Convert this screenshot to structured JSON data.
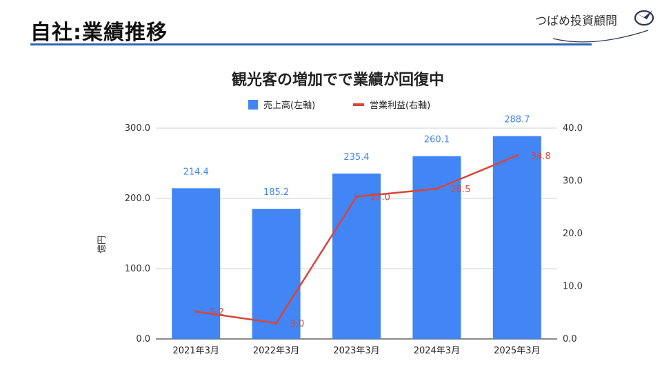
{
  "header": {
    "title": "自社:業績推移",
    "logo_text": "つばめ投資顧問",
    "accent_color": "#2f64b4"
  },
  "chart_data": {
    "type": "bar",
    "title": "観光客の増加でで業績が回復中",
    "categories": [
      "2021年3月",
      "2022年3月",
      "2023年3月",
      "2024年3月",
      "2025年3月"
    ],
    "series": [
      {
        "name": "売上高(左軸)",
        "type": "bar",
        "axis": "left",
        "color": "#4285f4",
        "values": [
          214.4,
          185.2,
          235.4,
          260.1,
          288.7
        ],
        "labels": [
          "214.4",
          "185.2",
          "235.4",
          "260.1",
          "288.7"
        ]
      },
      {
        "name": "営業利益(右軸)",
        "type": "line",
        "axis": "right",
        "color": "#db4437",
        "values": [
          5.2,
          3.0,
          27.0,
          28.5,
          34.8
        ],
        "labels": [
          "5.2",
          "3.0",
          "27.0",
          "28.5",
          "34.8"
        ]
      }
    ],
    "ylabel": "億円",
    "ylim": [
      0,
      300
    ],
    "y2lim": [
      0,
      40
    ],
    "yticks": [
      "0.0",
      "100.0",
      "200.0",
      "300.0"
    ],
    "y2ticks": [
      "0.0",
      "10.0",
      "20.0",
      "30.0",
      "40.0"
    ],
    "legend_position": "top-center",
    "grid": true
  }
}
